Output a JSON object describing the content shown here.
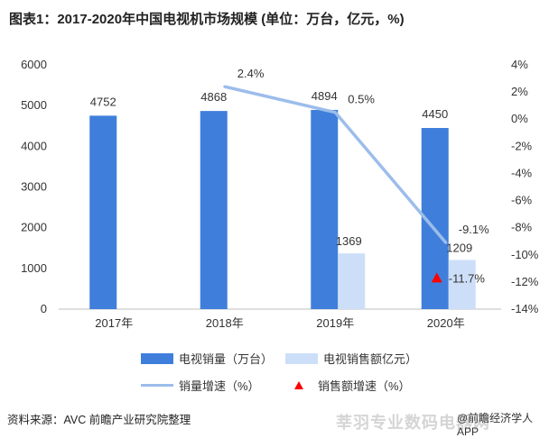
{
  "title": "图表1：2017-2020年中国电视机市场规模 (单位：万台，亿元，%)",
  "chart_data": {
    "type": "bar",
    "categories": [
      "2017年",
      "2018年",
      "2019年",
      "2020年"
    ],
    "left_axis": {
      "ylim": [
        0,
        6000
      ],
      "ticks": [
        "0",
        "1000",
        "2000",
        "3000",
        "4000",
        "5000",
        "6000"
      ]
    },
    "right_axis": {
      "ylim": [
        -14,
        4
      ],
      "ticks": [
        "-14%",
        "-12%",
        "-10%",
        "-8%",
        "-6%",
        "-4%",
        "-2%",
        "0%",
        "2%",
        "4%"
      ]
    },
    "series": [
      {
        "name": "电视销量（万台）",
        "kind": "bar",
        "axis": "left",
        "color": "#3f7fdb",
        "values": [
          4752,
          4868,
          4894,
          4450
        ],
        "labels": [
          "4752",
          "4868",
          "4894",
          "4450"
        ]
      },
      {
        "name": "电视销售额亿元）",
        "kind": "bar",
        "axis": "left",
        "color": "#cddff8",
        "values": [
          null,
          null,
          1369,
          1209
        ],
        "labels": [
          "",
          "",
          "1369",
          "1209"
        ]
      },
      {
        "name": "销量增速（%）",
        "kind": "line",
        "axis": "right",
        "color": "#9cbdeb",
        "values": [
          null,
          2.4,
          0.5,
          -9.1
        ],
        "labels": [
          "",
          "2.4%",
          "0.5%",
          "-9.1%"
        ]
      },
      {
        "name": "销售额增速（%）",
        "kind": "marker",
        "axis": "right",
        "color": "#ff0000",
        "values": [
          null,
          null,
          null,
          -11.7
        ],
        "labels": [
          "",
          "",
          "",
          "-11.7%"
        ]
      }
    ]
  },
  "footer": {
    "source": "资料来源：AVC 前瞻产业研究院整理",
    "brand": "@前瞻经济学人APP",
    "watermark": "莘羽专业数码电器网"
  }
}
